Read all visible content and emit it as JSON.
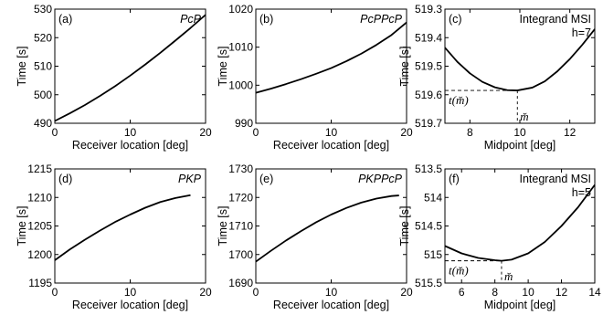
{
  "chart_data": [
    {
      "type": "line",
      "panel_label": "(a)",
      "phase_label": "PcP",
      "xlabel": "Receiver location [deg]",
      "ylabel": "Time [s]",
      "xlim": [
        0,
        20
      ],
      "ylim": [
        490,
        530
      ],
      "y_inverted": false,
      "xticks": [
        "0",
        "10",
        "20"
      ],
      "yticks": [
        "490",
        "500",
        "510",
        "520",
        "530"
      ],
      "x": [
        0,
        2,
        4,
        6,
        8,
        10,
        12,
        14,
        16,
        18,
        20
      ],
      "y": [
        490.8,
        493.5,
        496.4,
        499.6,
        503.0,
        506.7,
        510.6,
        514.7,
        519.0,
        523.4,
        528.0
      ]
    },
    {
      "type": "line",
      "panel_label": "(b)",
      "phase_label": "PcPPcP",
      "xlabel": "Receiver location [deg]",
      "ylabel": "Time [s]",
      "xlim": [
        0,
        20
      ],
      "ylim": [
        990,
        1020
      ],
      "y_inverted": false,
      "xticks": [
        "0",
        "10",
        "20"
      ],
      "yticks": [
        "990",
        "1000",
        "1010",
        "1020"
      ],
      "x": [
        0,
        2,
        4,
        6,
        8,
        10,
        12,
        14,
        16,
        18,
        20
      ],
      "y": [
        998.0,
        999.1,
        1000.3,
        1001.6,
        1003.0,
        1004.5,
        1006.3,
        1008.3,
        1010.6,
        1013.2,
        1016.5
      ]
    },
    {
      "type": "line",
      "panel_label": "(c)",
      "annotation_lines": [
        "Integrand MSI",
        "h=7"
      ],
      "xlabel": "Midpoint [deg]",
      "ylabel": "Time [s]",
      "xlim": [
        7,
        13
      ],
      "ylim": [
        519.3,
        519.7
      ],
      "y_inverted": true,
      "xticks": [
        "8",
        "10",
        "12"
      ],
      "yticks": [
        "519.3",
        "519.4",
        "519.5",
        "519.6",
        "519.7"
      ],
      "x": [
        7,
        7.5,
        8,
        8.5,
        9,
        9.5,
        9.9,
        10.5,
        11,
        11.5,
        12,
        12.5,
        13
      ],
      "y": [
        519.435,
        519.485,
        519.525,
        519.555,
        519.574,
        519.584,
        519.585,
        519.575,
        519.553,
        519.518,
        519.475,
        519.425,
        519.37
      ],
      "minimum": {
        "x": 9.9,
        "y": 519.585
      },
      "min_time_label": "t(m̆)",
      "min_point_label": "m̆"
    },
    {
      "type": "line",
      "panel_label": "(d)",
      "phase_label": "PKP",
      "xlabel": "Receiver location [deg]",
      "ylabel": "Time [s]",
      "xlim": [
        0,
        20
      ],
      "ylim": [
        1195,
        1215
      ],
      "y_inverted": false,
      "xticks": [
        "0",
        "10",
        "20"
      ],
      "yticks": [
        "1195",
        "1200",
        "1205",
        "1210",
        "1215"
      ],
      "x": [
        0,
        2,
        4,
        6,
        8,
        10,
        12,
        14,
        16,
        18
      ],
      "y": [
        1199.0,
        1200.9,
        1202.6,
        1204.2,
        1205.7,
        1207.0,
        1208.2,
        1209.2,
        1209.9,
        1210.4
      ]
    },
    {
      "type": "line",
      "panel_label": "(e)",
      "phase_label": "PKPPcP",
      "xlabel": "Receiver location [deg]",
      "ylabel": "Time [s]",
      "xlim": [
        0,
        20
      ],
      "ylim": [
        1690,
        1730
      ],
      "y_inverted": false,
      "xticks": [
        "0",
        "10",
        "20"
      ],
      "yticks": [
        "1690",
        "1700",
        "1710",
        "1720",
        "1730"
      ],
      "x": [
        0,
        2,
        4,
        6,
        8,
        10,
        12,
        14,
        16,
        18,
        19
      ],
      "y": [
        1697.5,
        1701.3,
        1704.9,
        1708.2,
        1711.3,
        1714.0,
        1716.3,
        1718.2,
        1719.6,
        1720.5,
        1720.7
      ]
    },
    {
      "type": "line",
      "panel_label": "(f)",
      "annotation_lines": [
        "Integrand MSI",
        "h=5"
      ],
      "xlabel": "Midpoint [deg]",
      "ylabel": "Time [s]",
      "xlim": [
        5,
        14
      ],
      "ylim": [
        513.5,
        515.5
      ],
      "y_inverted": true,
      "xticks": [
        "6",
        "8",
        "10",
        "12",
        "14"
      ],
      "yticks": [
        "513.5",
        "514",
        "514.5",
        "515",
        "515.5"
      ],
      "x": [
        5,
        6,
        7,
        8,
        8.4,
        9,
        10,
        11,
        12,
        13,
        14
      ],
      "y": [
        514.85,
        514.98,
        515.06,
        515.1,
        515.11,
        515.09,
        514.98,
        514.78,
        514.5,
        514.17,
        513.78
      ],
      "minimum": {
        "x": 8.4,
        "y": 515.11
      },
      "min_time_label": "t(m̆)",
      "min_point_label": "m̆"
    }
  ]
}
